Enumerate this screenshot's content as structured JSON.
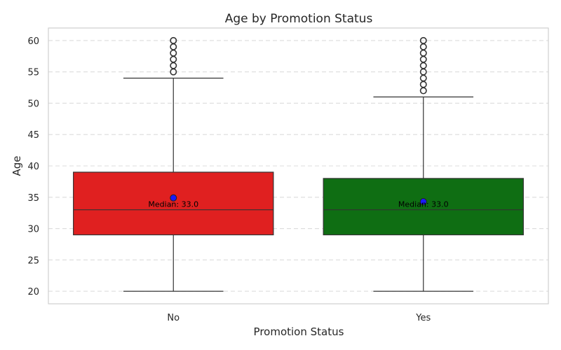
{
  "chart_data": {
    "type": "box",
    "title": "Age by Promotion Status",
    "xlabel": "Promotion Status",
    "ylabel": "Age",
    "ylim": [
      18,
      62
    ],
    "yticks": [
      20,
      25,
      30,
      35,
      40,
      45,
      50,
      55,
      60
    ],
    "grid": true,
    "categories": [
      "No",
      "Yes"
    ],
    "boxes": [
      {
        "category": "No",
        "color": "#e02020",
        "whisker_low": 20,
        "q1": 29,
        "median": 33,
        "q3": 39,
        "whisker_high": 54,
        "mean": 34.9,
        "outliers": [
          55,
          56,
          57,
          58,
          59,
          60
        ],
        "median_label": "Median: 33.0"
      },
      {
        "category": "Yes",
        "color": "#0f6e13",
        "whisker_low": 20,
        "q1": 29,
        "median": 33,
        "q3": 38,
        "whisker_high": 51,
        "mean": 34.3,
        "outliers": [
          52,
          53,
          54,
          55,
          56,
          57,
          58,
          59,
          60
        ],
        "median_label": "Median: 33.0"
      }
    ],
    "mean_marker_color": "#1a1aff"
  }
}
